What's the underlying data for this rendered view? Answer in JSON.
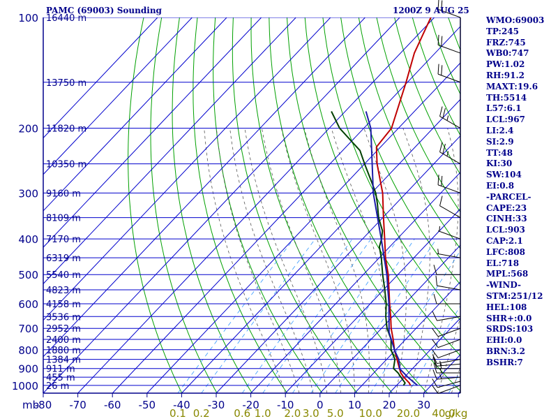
{
  "header": {
    "title": "PAMC (69003) Sounding",
    "time": "1200Z  9 AUG 25"
  },
  "colors": {
    "axis": "#00008b",
    "isobar": "#0000cd",
    "isotherm": "#0000cd",
    "dry_adiabat": "#00a000",
    "moist_adiabat": "#555555",
    "mixing_ratio": "#3399ff",
    "temperature": "#c00000",
    "dewpoint": "#004000",
    "parcel": "#1c1ca8",
    "mixing_label": "#888800",
    "wind": "#000000"
  },
  "axes": {
    "pressure_unit": "mb",
    "pressure_ticks": [
      "100",
      "200",
      "300",
      "400",
      "500",
      "600",
      "700",
      "800",
      "900",
      "1000"
    ],
    "temperature_ticks": [
      "-80",
      "-70",
      "-60",
      "-50",
      "-40",
      "-30",
      "-20",
      "-10",
      "0",
      "10",
      "20",
      "30"
    ],
    "temperature_label_mb": "mb",
    "mixing_ratio_labels": [
      "0.1",
      "0.2",
      "0.6",
      "1.0",
      "2.0",
      "3.0",
      "5.0",
      "10.0",
      "20.0",
      "40.0"
    ],
    "mixing_ratio_unit": "g/kg",
    "heights": [
      {
        "p": 100,
        "label": "16440 m"
      },
      {
        "p": 150,
        "label": "13750 m"
      },
      {
        "p": 200,
        "label": "11820 m"
      },
      {
        "p": 250,
        "label": "10350 m"
      },
      {
        "p": 300,
        "label": "9160 m"
      },
      {
        "p": 350,
        "label": "8109 m"
      },
      {
        "p": 400,
        "label": "7170 m"
      },
      {
        "p": 450,
        "label": "6319 m"
      },
      {
        "p": 500,
        "label": "5540 m"
      },
      {
        "p": 550,
        "label": "4823 m"
      },
      {
        "p": 600,
        "label": "4158 m"
      },
      {
        "p": 650,
        "label": "3536 m"
      },
      {
        "p": 700,
        "label": "2952 m"
      },
      {
        "p": 750,
        "label": "2400 m"
      },
      {
        "p": 800,
        "label": "1880 m"
      },
      {
        "p": 850,
        "label": "1384 m"
      },
      {
        "p": 900,
        "label": "911 m"
      },
      {
        "p": 950,
        "label": "455 m"
      },
      {
        "p": 1000,
        "label": "26 m"
      }
    ]
  },
  "chart_data": {
    "type": "line",
    "skew_t": true,
    "pressure_range": [
      1000,
      100
    ],
    "temperature_range": [
      -80,
      40
    ],
    "series": [
      {
        "key": "temperature",
        "points": [
          [
            1000,
            24
          ],
          [
            985,
            23
          ],
          [
            950,
            19.8
          ],
          [
            925,
            17.8
          ],
          [
            900,
            16.2
          ],
          [
            850,
            13
          ],
          [
            800,
            9.6
          ],
          [
            750,
            6.4
          ],
          [
            700,
            2.8
          ],
          [
            650,
            -0.6
          ],
          [
            600,
            -4.4
          ],
          [
            550,
            -8.4
          ],
          [
            500,
            -12.8
          ],
          [
            450,
            -18.2
          ],
          [
            400,
            -23.6
          ],
          [
            350,
            -29.8
          ],
          [
            300,
            -36.8
          ],
          [
            250,
            -46.4
          ],
          [
            225,
            -51.2
          ],
          [
            200,
            -52
          ],
          [
            150,
            -60.4
          ],
          [
            125,
            -66
          ],
          [
            100,
            -71
          ]
        ]
      },
      {
        "key": "dewpoint",
        "points": [
          [
            1000,
            22
          ],
          [
            985,
            21.8
          ],
          [
            950,
            19
          ],
          [
            925,
            17
          ],
          [
            900,
            14.5
          ],
          [
            850,
            12.4
          ],
          [
            800,
            8.6
          ],
          [
            750,
            5.8
          ],
          [
            700,
            1.6
          ],
          [
            650,
            -2
          ],
          [
            600,
            -5.4
          ],
          [
            550,
            -9.6
          ],
          [
            500,
            -14.4
          ],
          [
            450,
            -19.4
          ],
          [
            420,
            -23
          ],
          [
            400,
            -24.5
          ],
          [
            380,
            -26.5
          ],
          [
            350,
            -31.2
          ],
          [
            320,
            -35.5
          ],
          [
            300,
            -38.8
          ],
          [
            280,
            -43
          ],
          [
            250,
            -50
          ],
          [
            230,
            -55
          ],
          [
            200,
            -67
          ],
          [
            180,
            -74
          ]
        ]
      },
      {
        "key": "parcel",
        "points": [
          [
            1000,
            26
          ],
          [
            950,
            21
          ],
          [
            903,
            16.5
          ],
          [
            850,
            13.5
          ],
          [
            808,
            10.2
          ],
          [
            718,
            3.3
          ],
          [
            600,
            -4.6
          ],
          [
            500,
            -13.2
          ],
          [
            400,
            -24.6
          ],
          [
            300,
            -39.5
          ],
          [
            200,
            -58
          ],
          [
            180,
            -64
          ]
        ]
      }
    ],
    "wind_barbs": [
      {
        "p": 1000,
        "dir": 250,
        "spd": 10
      },
      {
        "p": 975,
        "dir": 255,
        "spd": 10
      },
      {
        "p": 950,
        "dir": 265,
        "spd": 15
      },
      {
        "p": 925,
        "dir": 270,
        "spd": 15
      },
      {
        "p": 900,
        "dir": 270,
        "spd": 15
      },
      {
        "p": 875,
        "dir": 265,
        "spd": 15
      },
      {
        "p": 850,
        "dir": 260,
        "spd": 10
      },
      {
        "p": 800,
        "dir": 250,
        "spd": 10
      },
      {
        "p": 750,
        "dir": 250,
        "spd": 10
      },
      {
        "p": 700,
        "dir": 250,
        "spd": 10
      },
      {
        "p": 650,
        "dir": 260,
        "spd": 10
      },
      {
        "p": 600,
        "dir": 270,
        "spd": 10
      },
      {
        "p": 550,
        "dir": 280,
        "spd": 10
      },
      {
        "p": 500,
        "dir": 270,
        "spd": 10
      },
      {
        "p": 450,
        "dir": 280,
        "spd": 5
      },
      {
        "p": 400,
        "dir": 290,
        "spd": 5
      },
      {
        "p": 350,
        "dir": 300,
        "spd": 10
      },
      {
        "p": 300,
        "dir": 290,
        "spd": 20
      },
      {
        "p": 250,
        "dir": 300,
        "spd": 25
      },
      {
        "p": 200,
        "dir": 300,
        "spd": 25
      },
      {
        "p": 150,
        "dir": 290,
        "spd": 20
      },
      {
        "p": 125,
        "dir": 290,
        "spd": 20
      },
      {
        "p": 100,
        "dir": 290,
        "spd": 25
      }
    ]
  },
  "indices": [
    "WMO:69003",
    "TP:245",
    "FRZ:745",
    "WB0:747",
    "PW:1.02",
    "RH:91.2",
    "MAXT:19.6",
    "TH:5514",
    "L57:6.1",
    "LCL:967",
    "LI:2.4",
    "SI:2.9",
    "TT:48",
    "KI:30",
    "SW:104",
    "EI:0.8",
    "-PARCEL-",
    "CAPE:23",
    "CINH:33",
    "LCL:903",
    "CAP:2.1",
    "LFC:808",
    "EL:718",
    "MPL:568",
    "-WIND-",
    "STM:251/12",
    "HEL:108",
    "SHR+:0.0",
    "SRDS:103",
    "EHI:0.0",
    "BRN:3.2",
    "BSHR:7"
  ]
}
